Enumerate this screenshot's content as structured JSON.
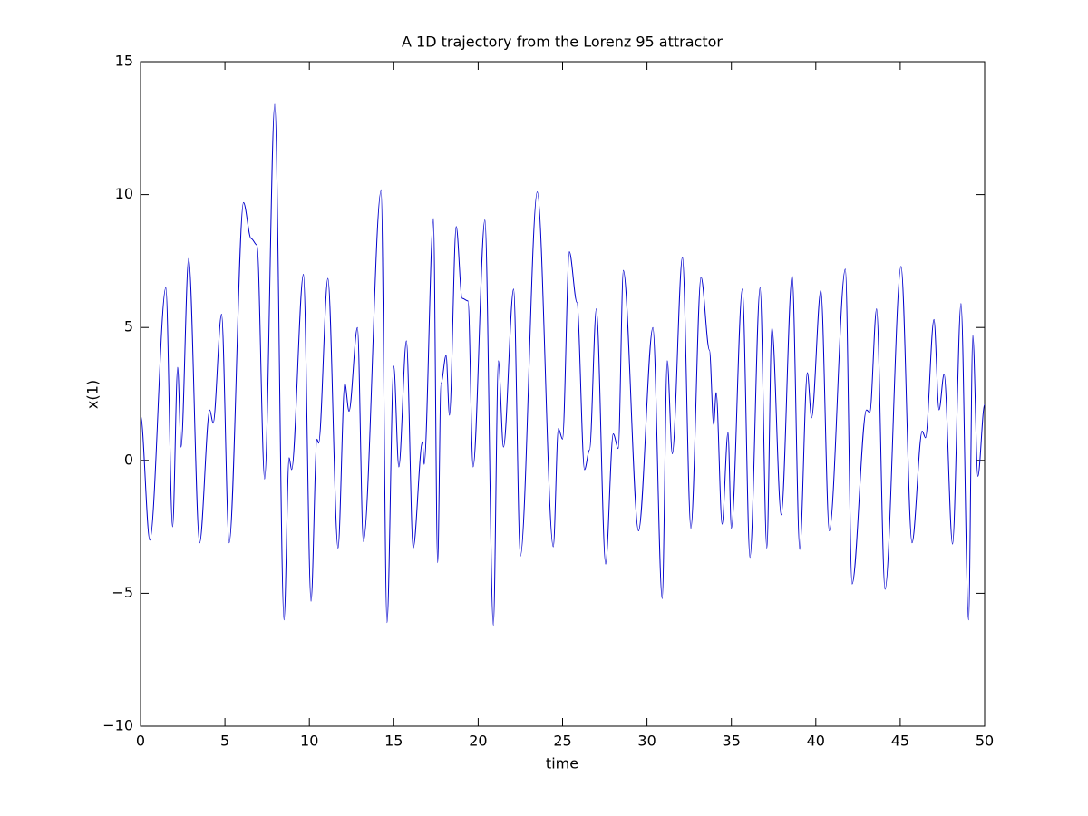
{
  "chart_data": {
    "type": "line",
    "title": "A 1D trajectory from the Lorenz 95 attractor",
    "x_label": "time",
    "y_label": "x(1)",
    "xlim": [
      0,
      50
    ],
    "ylim": [
      -10,
      15
    ],
    "xticks": [
      0,
      5,
      10,
      15,
      20,
      25,
      30,
      35,
      40,
      45,
      50
    ],
    "yticks": [
      {
        "value": -10,
        "label": "−10"
      },
      {
        "value": -5,
        "label": "−5"
      },
      0,
      5,
      10,
      15
    ],
    "grid": false,
    "series": [
      {
        "name": "x(1)",
        "color": "#0000cc",
        "x": [
          0,
          0.55,
          1.5,
          1.9,
          2.2,
          2.4,
          2.85,
          3.5,
          4.1,
          4.3,
          4.8,
          5.25,
          6.1,
          6.55,
          6.9,
          7.35,
          7.95,
          8.5,
          8.8,
          8.95,
          9.65,
          10.1,
          10.45,
          10.55,
          11.1,
          11.7,
          12.1,
          12.35,
          12.85,
          13.2,
          14.25,
          14.6,
          15,
          15.3,
          15.75,
          16.15,
          16.7,
          16.8,
          17.35,
          17.6,
          17.8,
          18.1,
          18.3,
          18.7,
          19.05,
          19.4,
          19.7,
          20.4,
          20.9,
          21.2,
          21.5,
          22.1,
          22.5,
          23.5,
          24.45,
          24.75,
          25,
          25.4,
          25.85,
          26.3,
          26.6,
          27,
          27.55,
          28,
          28.3,
          28.6,
          29.5,
          30.35,
          30.9,
          31.2,
          31.5,
          32.1,
          32.6,
          33.2,
          33.7,
          33.95,
          34.1,
          34.45,
          34.8,
          35,
          35.65,
          36.1,
          36.7,
          37.1,
          37.4,
          37.95,
          38.6,
          39.05,
          39.5,
          39.75,
          40.3,
          40.8,
          41.75,
          42.15,
          43,
          43.2,
          43.6,
          44.1,
          45.05,
          45.7,
          46.3,
          46.5,
          47,
          47.3,
          47.6,
          48.1,
          48.6,
          49.05,
          49.3,
          49.6,
          50
        ],
        "values": [
          1.7,
          -3.0,
          6.5,
          -2.5,
          3.5,
          0.5,
          7.6,
          -3.1,
          1.9,
          1.4,
          5.5,
          -3.1,
          9.7,
          8.35,
          8.1,
          -0.7,
          13.4,
          -6.0,
          0.1,
          -0.35,
          7.0,
          -5.3,
          0.8,
          0.65,
          6.85,
          -3.3,
          2.9,
          1.85,
          5.0,
          -3.05,
          10.15,
          -6.1,
          3.55,
          -0.25,
          4.5,
          -3.3,
          0.7,
          -0.15,
          9.1,
          -3.85,
          2.9,
          3.95,
          1.7,
          8.8,
          6.1,
          6.0,
          -0.25,
          9.05,
          -6.2,
          3.75,
          0.5,
          6.45,
          -3.6,
          10.1,
          -3.25,
          1.2,
          0.8,
          7.85,
          5.95,
          -0.35,
          0.4,
          5.7,
          -3.9,
          1.0,
          0.45,
          7.15,
          -2.65,
          5.0,
          -5.2,
          3.75,
          0.25,
          7.65,
          -2.55,
          6.9,
          4.15,
          1.35,
          2.55,
          -2.4,
          1.05,
          -2.55,
          6.45,
          -3.65,
          6.5,
          -3.3,
          5.0,
          -2.05,
          6.95,
          -3.35,
          3.3,
          1.6,
          6.4,
          -2.65,
          7.2,
          -4.65,
          1.9,
          1.8,
          5.7,
          -4.85,
          7.3,
          -3.1,
          1.1,
          0.85,
          5.3,
          1.9,
          3.25,
          -3.15,
          5.9,
          -6.0,
          4.7,
          -0.6,
          2.1
        ]
      }
    ]
  }
}
